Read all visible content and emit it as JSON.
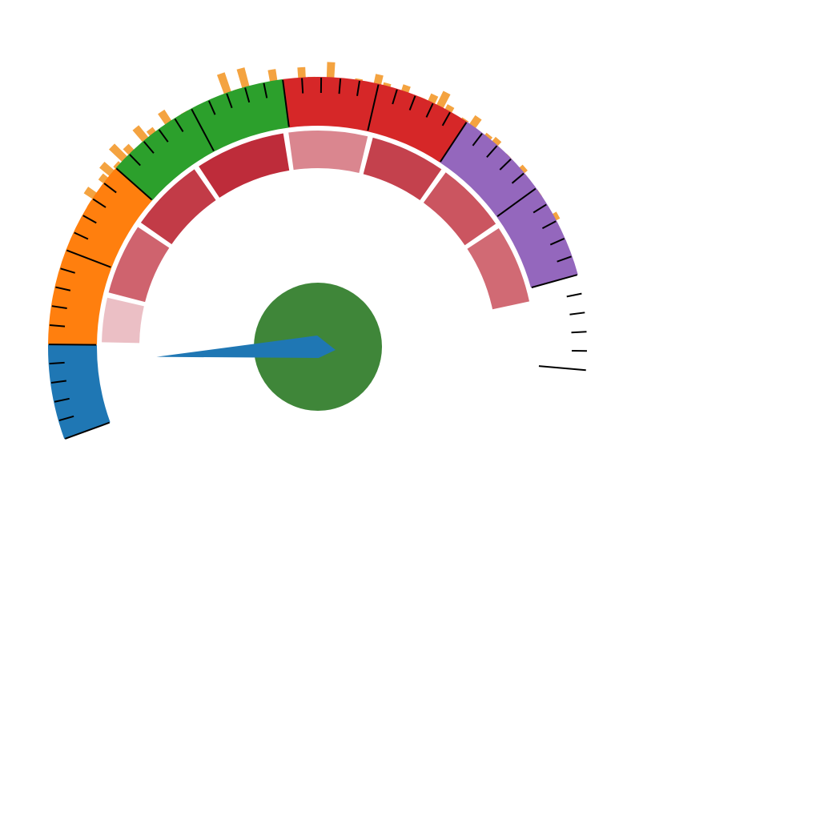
{
  "chart_data": {
    "type": "gauge",
    "title": "",
    "range": [
      0,
      100
    ],
    "value": 8,
    "bands": [
      {
        "name": "",
        "from": 0,
        "to": 10,
        "color": "#1f77b4"
      },
      {
        "name": "",
        "from": 10,
        "to": 30,
        "color": "#ff7f0e"
      },
      {
        "name": "",
        "from": 30,
        "to": 50,
        "color": "#2ca02c"
      },
      {
        "name": "",
        "from": 50,
        "to": 70,
        "color": "#d62728"
      },
      {
        "name": "",
        "from": 70,
        "to": 90,
        "color": "#9467bd"
      }
    ],
    "inner_segments": [
      {
        "from": 10,
        "to": 16.5,
        "value": 0.2
      },
      {
        "from": 16.5,
        "to": 26.5,
        "value": 0.65
      },
      {
        "from": 26.5,
        "to": 37,
        "value": 0.85
      },
      {
        "from": 37,
        "to": 49.5,
        "value": 0.92
      },
      {
        "from": 49.5,
        "to": 60.5,
        "value": 0.48
      },
      {
        "from": 60.5,
        "to": 71,
        "value": 0.82
      },
      {
        "from": 71,
        "to": 81,
        "value": 0.72
      },
      {
        "from": 81,
        "to": 92,
        "value": 0.62
      }
    ],
    "histogram": {
      "from": 17,
      "to": 87,
      "values": [
        0.25,
        0.3,
        0.35,
        0.32,
        0.5,
        0.38,
        0.55,
        0.45,
        0.6,
        0.8,
        0.55,
        0.72,
        0.85,
        0.65,
        0.95,
        0.75,
        0.55,
        0.9,
        0.7,
        0.3,
        0.85,
        0.4,
        0.6,
        0.3,
        0.28,
        0.4,
        0.45,
        1.0,
        0.6,
        0.98,
        0.3,
        0.55,
        0.82,
        0.5,
        0.25,
        0.8,
        0.6,
        0.45,
        0.9,
        0.55,
        0.35,
        0.62,
        0.55,
        0.78,
        0.65,
        0.5,
        0.72,
        0.55,
        0.6,
        0.75,
        0.9,
        0.7,
        0.55,
        0.62,
        0.8,
        0.5,
        0.65,
        0.7,
        0.55,
        0.6,
        0.45,
        0.68,
        0.5,
        0.4,
        0.6,
        0.55,
        0.5,
        0.68,
        0.5,
        0.42,
        0.45
      ],
      "color": "#f4a340"
    },
    "major_ticks": [
      0,
      10,
      20,
      30,
      40,
      50,
      60,
      70,
      80,
      90,
      100
    ],
    "minor_tick_step": 2,
    "colors": {
      "needle": "#1f77b4",
      "hub": "#3f8639",
      "tick": "#000000"
    }
  }
}
